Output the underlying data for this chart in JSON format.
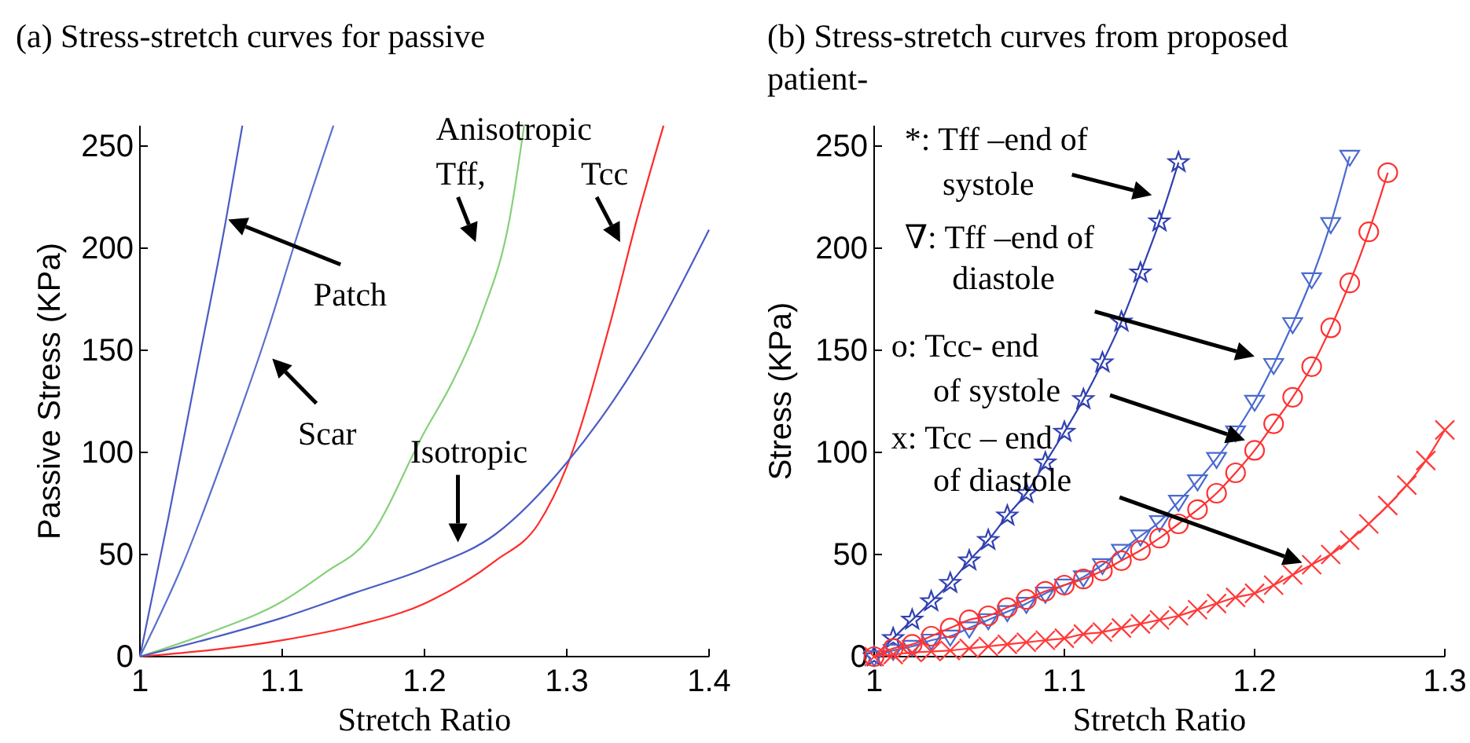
{
  "chart_data": [
    {
      "type": "line",
      "title": "(a) Stress-stretch curves for passive",
      "xlabel": "Stretch Ratio",
      "ylabel": "Passive Stress (KPa)",
      "xlim": [
        1,
        1.4
      ],
      "xticks": [
        1,
        1.1,
        1.2,
        1.3,
        1.4
      ],
      "ylim": [
        0,
        260
      ],
      "yticks": [
        0,
        50,
        100,
        150,
        200,
        250
      ],
      "grid": false,
      "series": [
        {
          "color": "#4a5cc4",
          "x": [
            1,
            1.02,
            1.04,
            1.06,
            1.072
          ],
          "values": [
            0,
            68,
            140,
            212,
            260
          ]
        },
        {
          "color": "#5a70cc",
          "x": [
            1,
            1.03,
            1.06,
            1.09,
            1.11,
            1.136
          ],
          "values": [
            0,
            45,
            100,
            160,
            205,
            260
          ]
        },
        {
          "color": "#86d07a",
          "x": [
            1,
            1.05,
            1.1,
            1.13,
            1.16,
            1.2,
            1.22,
            1.24,
            1.26,
            1.27
          ],
          "values": [
            0,
            12,
            27,
            41,
            57,
            110,
            135,
            167,
            215,
            260
          ]
        },
        {
          "color": "#ff2a2a",
          "x": [
            1,
            1.1,
            1.15,
            1.2,
            1.25,
            1.28,
            1.3,
            1.33,
            1.35,
            1.368
          ],
          "values": [
            0,
            8,
            15,
            26,
            47,
            65,
            93,
            162,
            216,
            260
          ]
        },
        {
          "color": "#4a5cc4",
          "x": [
            1,
            1.05,
            1.1,
            1.15,
            1.2,
            1.25,
            1.3,
            1.35,
            1.4
          ],
          "values": [
            0,
            9,
            19,
            31,
            43,
            60,
            95,
            144,
            209
          ]
        }
      ],
      "annotations": [
        "Patch",
        "Scar",
        "Anisotropic\nTff,",
        "Tcc",
        "Isotropic"
      ]
    },
    {
      "type": "line",
      "title": "(b) Stress-stretch curves from proposed patient-",
      "xlabel": "Stretch Ratio",
      "ylabel": "Stress (KPa)",
      "xlim": [
        1,
        1.3
      ],
      "xticks": [
        1,
        1.1,
        1.2,
        1.3
      ],
      "ylim": [
        0,
        260
      ],
      "yticks": [
        0,
        50,
        100,
        150,
        200,
        250
      ],
      "grid": false,
      "series": [
        {
          "color": "#3040b0",
          "marker": "star",
          "x": [
            1,
            1.01,
            1.02,
            1.03,
            1.04,
            1.05,
            1.06,
            1.07,
            1.08,
            1.09,
            1.1,
            1.11,
            1.12,
            1.13,
            1.14,
            1.15,
            1.16
          ],
          "values": [
            0,
            9,
            18,
            27,
            36,
            47,
            57,
            69,
            80,
            95,
            110,
            126,
            144,
            164,
            188,
            213,
            242
          ]
        },
        {
          "color": "#4a6ad0",
          "marker": "triangle",
          "x": [
            1,
            1.01,
            1.02,
            1.03,
            1.04,
            1.05,
            1.06,
            1.07,
            1.08,
            1.09,
            1.1,
            1.11,
            1.12,
            1.13,
            1.14,
            1.15,
            1.16,
            1.17,
            1.18,
            1.19,
            1.2,
            1.21,
            1.22,
            1.23,
            1.24,
            1.25
          ],
          "values": [
            0,
            3,
            5,
            8,
            10,
            14,
            18,
            22,
            26,
            31,
            35,
            39,
            45,
            52,
            59,
            66,
            76,
            86,
            97,
            110,
            125,
            143,
            163,
            185,
            212,
            245
          ]
        },
        {
          "color": "#ff3030",
          "marker": "circle",
          "x": [
            1,
            1.01,
            1.02,
            1.03,
            1.04,
            1.05,
            1.06,
            1.07,
            1.08,
            1.09,
            1.1,
            1.11,
            1.12,
            1.13,
            1.14,
            1.15,
            1.16,
            1.17,
            1.18,
            1.19,
            1.2,
            1.21,
            1.22,
            1.23,
            1.24,
            1.25,
            1.26,
            1.27
          ],
          "values": [
            0,
            4,
            6,
            10,
            14,
            18,
            20,
            24,
            28,
            32,
            35,
            38,
            42,
            47,
            52,
            58,
            65,
            72,
            80,
            90,
            101,
            114,
            127,
            142,
            161,
            183,
            208,
            237
          ]
        },
        {
          "color": "#ff3a3a",
          "marker": "cross",
          "x": [
            1,
            1.01,
            1.02,
            1.03,
            1.04,
            1.05,
            1.06,
            1.07,
            1.08,
            1.09,
            1.1,
            1.11,
            1.12,
            1.13,
            1.14,
            1.15,
            1.16,
            1.17,
            1.18,
            1.19,
            1.2,
            1.21,
            1.22,
            1.23,
            1.24,
            1.25,
            1.26,
            1.27,
            1.28,
            1.29,
            1.3
          ],
          "values": [
            0,
            1,
            2,
            2.5,
            3,
            4,
            5,
            6,
            7,
            8,
            9,
            11,
            12,
            14,
            16,
            18,
            20,
            23,
            26,
            29,
            31,
            35,
            40,
            45,
            50,
            57,
            65,
            74,
            84,
            96,
            111
          ]
        }
      ],
      "annotations": [
        "*: Tff –end of\nsystole",
        "∇: Tff –end of\ndiastole",
        "o: Tcc- end\nof systole",
        "x: Tcc – end\nof diastole"
      ]
    }
  ]
}
